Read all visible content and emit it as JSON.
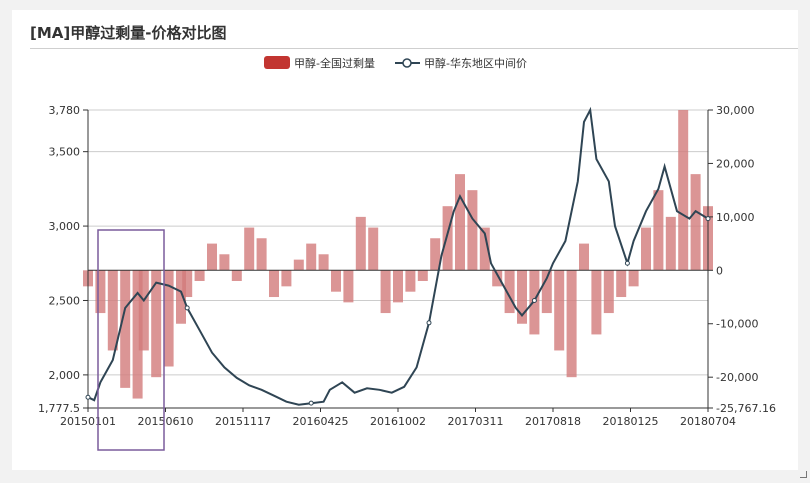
{
  "title": "[MA]甲醇过剩量-价格对比图",
  "colors": {
    "bar": "#c23531",
    "bar_fill": "#d27a7a",
    "line": "#2f4554",
    "box": "#7a5c9c"
  },
  "chart_data": {
    "type": "bar",
    "title": "",
    "legend_position": "top-center",
    "series": [
      {
        "name": "甲醇-全国过剩量",
        "type": "bar",
        "axis": "right"
      },
      {
        "name": "甲醇-华东地区中间价",
        "type": "line",
        "axis": "left"
      }
    ],
    "x_ticks": [
      "20150101",
      "20150610",
      "20151117",
      "20160425",
      "20161002",
      "20170311",
      "20170818",
      "20180125",
      "20180704"
    ],
    "y_left": {
      "min": 1777.5,
      "max": 3780,
      "ticks": [
        "1,777.5",
        "2,000",
        "2,500",
        "3,000",
        "3,500",
        "3,780"
      ]
    },
    "y_right": {
      "min": -25767.16,
      "max": 30000,
      "ticks": [
        "-25,767.16",
        "-20,000",
        "-10,000",
        "0",
        "10,000",
        "20,000",
        "30,000"
      ]
    },
    "grid": true,
    "price_points": [
      [
        0,
        1850
      ],
      [
        0.01,
        1830
      ],
      [
        0.02,
        1950
      ],
      [
        0.04,
        2100
      ],
      [
        0.06,
        2450
      ],
      [
        0.08,
        2550
      ],
      [
        0.09,
        2500
      ],
      [
        0.11,
        2620
      ],
      [
        0.13,
        2600
      ],
      [
        0.15,
        2560
      ],
      [
        0.16,
        2450
      ],
      [
        0.18,
        2300
      ],
      [
        0.2,
        2150
      ],
      [
        0.22,
        2050
      ],
      [
        0.24,
        1980
      ],
      [
        0.26,
        1930
      ],
      [
        0.28,
        1900
      ],
      [
        0.3,
        1860
      ],
      [
        0.32,
        1820
      ],
      [
        0.34,
        1800
      ],
      [
        0.36,
        1810
      ],
      [
        0.38,
        1820
      ],
      [
        0.39,
        1900
      ],
      [
        0.41,
        1950
      ],
      [
        0.43,
        1880
      ],
      [
        0.45,
        1910
      ],
      [
        0.47,
        1900
      ],
      [
        0.49,
        1880
      ],
      [
        0.51,
        1920
      ],
      [
        0.53,
        2050
      ],
      [
        0.55,
        2350
      ],
      [
        0.57,
        2800
      ],
      [
        0.59,
        3100
      ],
      [
        0.6,
        3200
      ],
      [
        0.62,
        3050
      ],
      [
        0.64,
        2950
      ],
      [
        0.65,
        2750
      ],
      [
        0.67,
        2600
      ],
      [
        0.69,
        2450
      ],
      [
        0.7,
        2400
      ],
      [
        0.72,
        2500
      ],
      [
        0.74,
        2650
      ],
      [
        0.75,
        2750
      ],
      [
        0.77,
        2900
      ],
      [
        0.79,
        3300
      ],
      [
        0.8,
        3700
      ],
      [
        0.81,
        3780
      ],
      [
        0.82,
        3450
      ],
      [
        0.84,
        3300
      ],
      [
        0.85,
        3000
      ],
      [
        0.87,
        2750
      ],
      [
        0.88,
        2900
      ],
      [
        0.9,
        3100
      ],
      [
        0.92,
        3250
      ],
      [
        0.93,
        3400
      ],
      [
        0.95,
        3100
      ],
      [
        0.97,
        3050
      ],
      [
        0.98,
        3100
      ],
      [
        1,
        3050
      ]
    ],
    "surplus_points": [
      [
        0,
        -3000
      ],
      [
        0.02,
        -8000
      ],
      [
        0.04,
        -15000
      ],
      [
        0.06,
        -22000
      ],
      [
        0.08,
        -24000
      ],
      [
        0.09,
        -15000
      ],
      [
        0.11,
        -20000
      ],
      [
        0.13,
        -18000
      ],
      [
        0.15,
        -10000
      ],
      [
        0.16,
        -5000
      ],
      [
        0.18,
        -2000
      ],
      [
        0.2,
        5000
      ],
      [
        0.22,
        3000
      ],
      [
        0.24,
        -2000
      ],
      [
        0.26,
        8000
      ],
      [
        0.28,
        6000
      ],
      [
        0.3,
        -5000
      ],
      [
        0.32,
        -3000
      ],
      [
        0.34,
        2000
      ],
      [
        0.36,
        5000
      ],
      [
        0.38,
        3000
      ],
      [
        0.4,
        -4000
      ],
      [
        0.42,
        -6000
      ],
      [
        0.44,
        10000
      ],
      [
        0.46,
        8000
      ],
      [
        0.48,
        -8000
      ],
      [
        0.5,
        -6000
      ],
      [
        0.52,
        -4000
      ],
      [
        0.54,
        -2000
      ],
      [
        0.56,
        6000
      ],
      [
        0.58,
        12000
      ],
      [
        0.6,
        18000
      ],
      [
        0.62,
        15000
      ],
      [
        0.64,
        8000
      ],
      [
        0.66,
        -3000
      ],
      [
        0.68,
        -8000
      ],
      [
        0.7,
        -10000
      ],
      [
        0.72,
        -12000
      ],
      [
        0.74,
        -8000
      ],
      [
        0.76,
        -15000
      ],
      [
        0.78,
        -20000
      ],
      [
        0.8,
        5000
      ],
      [
        0.82,
        -12000
      ],
      [
        0.84,
        -8000
      ],
      [
        0.86,
        -5000
      ],
      [
        0.88,
        -3000
      ],
      [
        0.9,
        8000
      ],
      [
        0.92,
        15000
      ],
      [
        0.94,
        10000
      ],
      [
        0.96,
        30000
      ],
      [
        0.98,
        18000
      ],
      [
        1,
        12000
      ]
    ]
  }
}
